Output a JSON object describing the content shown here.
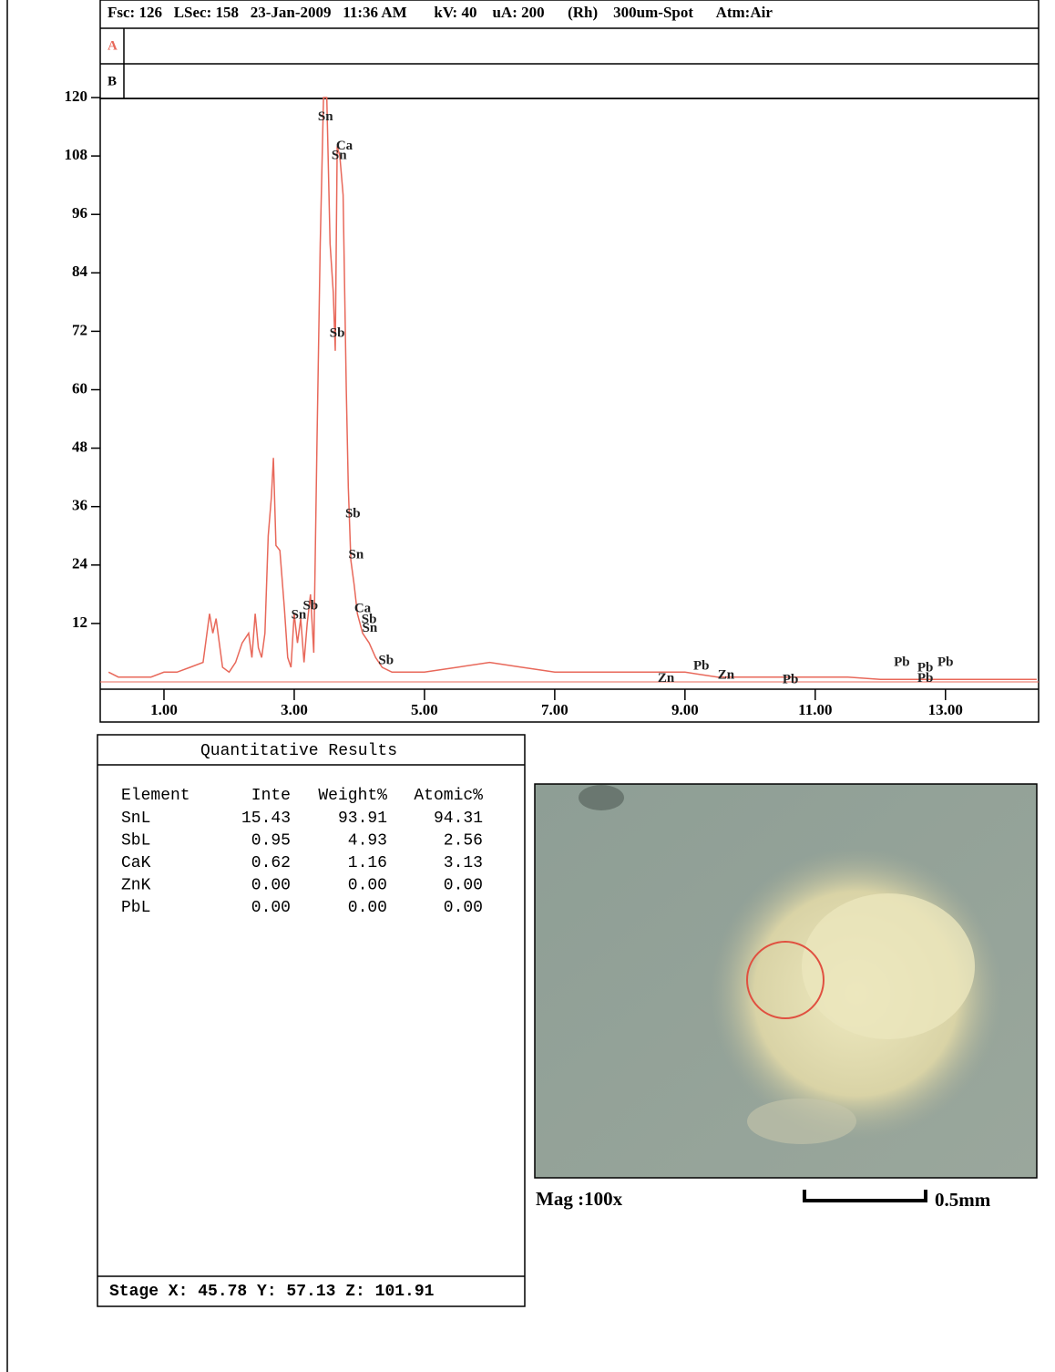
{
  "header": {
    "info": "Fsc: 126   LSec: 158   23-Jan-2009   11:36 AM       kV: 40    uA: 200      (Rh)    300um-Spot      Atm:Air",
    "row_a": "A",
    "row_b": "B"
  },
  "chart_data": {
    "type": "line",
    "color": "#e8685a",
    "x": [
      0.15,
      0.3,
      0.5,
      0.8,
      1.0,
      1.2,
      1.4,
      1.6,
      1.7,
      1.75,
      1.8,
      1.85,
      1.9,
      2.0,
      2.1,
      2.2,
      2.3,
      2.35,
      2.4,
      2.45,
      2.5,
      2.55,
      2.6,
      2.65,
      2.68,
      2.72,
      2.78,
      2.85,
      2.9,
      2.95,
      3.0,
      3.05,
      3.1,
      3.15,
      3.2,
      3.25,
      3.3,
      3.35,
      3.4,
      3.45,
      3.5,
      3.55,
      3.6,
      3.63,
      3.66,
      3.7,
      3.75,
      3.8,
      3.83,
      3.87,
      3.92,
      3.97,
      4.05,
      4.15,
      4.25,
      4.35,
      4.5,
      5.0,
      5.5,
      6.0,
      6.5,
      7.0,
      7.5,
      8.0,
      8.5,
      9.0,
      9.5,
      10.0,
      10.5,
      11.0,
      11.5,
      12.0,
      13.0,
      14.0,
      14.4
    ],
    "values": [
      2,
      1,
      1,
      1,
      2,
      2,
      3,
      4,
      14,
      10,
      13,
      8,
      3,
      2,
      4,
      8,
      10,
      5,
      14,
      7,
      5,
      10,
      30,
      38,
      46,
      28,
      27,
      15,
      5,
      3,
      14,
      8,
      13,
      4,
      12,
      18,
      6,
      50,
      90,
      120,
      120,
      90,
      80,
      68,
      110,
      108,
      100,
      60,
      40,
      25,
      20,
      14,
      10,
      8,
      5,
      3,
      2,
      2,
      3,
      4,
      3,
      2,
      2,
      2,
      2,
      2,
      1,
      1,
      1,
      1,
      1,
      0.5,
      0.5,
      0.5,
      0.5
    ],
    "xlim": [
      0,
      14.43
    ],
    "ylim": [
      0,
      120
    ],
    "xticks": [
      {
        "value": 1,
        "label": "1.00"
      },
      {
        "value": 3,
        "label": "3.00"
      },
      {
        "value": 5,
        "label": "5.00"
      },
      {
        "value": 7,
        "label": "7.00"
      },
      {
        "value": 9,
        "label": "9.00"
      },
      {
        "value": 11,
        "label": "11.00"
      },
      {
        "value": 13,
        "label": "13.00"
      }
    ],
    "yticks": [
      12,
      24,
      36,
      48,
      60,
      72,
      84,
      96,
      108,
      120
    ],
    "annotations": [
      {
        "text": "Sn",
        "x": 3.48,
        "y": 116
      },
      {
        "text": "Ca",
        "x": 3.77,
        "y": 110
      },
      {
        "text": "Sn",
        "x": 3.69,
        "y": 108
      },
      {
        "text": "Sb",
        "x": 3.66,
        "y": 71.5
      },
      {
        "text": "Sb",
        "x": 3.9,
        "y": 34.4
      },
      {
        "text": "Sn",
        "x": 3.95,
        "y": 26
      },
      {
        "text": "Sn",
        "x": 3.07,
        "y": 13.7
      },
      {
        "text": "Sb",
        "x": 3.25,
        "y": 15.5
      },
      {
        "text": "Ca",
        "x": 4.05,
        "y": 15
      },
      {
        "text": "Sb",
        "x": 4.15,
        "y": 12.7
      },
      {
        "text": "Sn",
        "x": 4.16,
        "y": 10.9
      },
      {
        "text": "Sb",
        "x": 4.41,
        "y": 4.3
      },
      {
        "text": "Zn",
        "x": 8.71,
        "y": 0.6
      },
      {
        "text": "Pb",
        "x": 9.25,
        "y": 3.2
      },
      {
        "text": "Zn",
        "x": 9.63,
        "y": 1.3
      },
      {
        "text": "Pb",
        "x": 10.62,
        "y": 0.4
      },
      {
        "text": "Pb",
        "x": 12.33,
        "y": 3.9
      },
      {
        "text": "Pb",
        "x": 12.69,
        "y": 2.8
      },
      {
        "text": "Pb",
        "x": 13.0,
        "y": 3.9
      },
      {
        "text": "Pb",
        "x": 12.69,
        "y": 0.6
      }
    ]
  },
  "table": {
    "title": "Quantitative Results",
    "columns": [
      "Element",
      "Inte",
      "Weight%",
      "Atomic%"
    ],
    "rows": [
      [
        "SnL",
        "15.43",
        "93.91",
        "94.31"
      ],
      [
        "SbL",
        "0.95",
        "4.93",
        "2.56"
      ],
      [
        "CaK",
        "0.62",
        "1.16",
        "3.13"
      ],
      [
        "ZnK",
        "0.00",
        "0.00",
        "0.00"
      ],
      [
        "PbL",
        "0.00",
        "0.00",
        "0.00"
      ]
    ],
    "stage": "Stage X: 45.78 Y: 57.13 Z: 101.91"
  },
  "photo": {
    "magnification": "Mag :100x",
    "scale": "0.5mm"
  }
}
